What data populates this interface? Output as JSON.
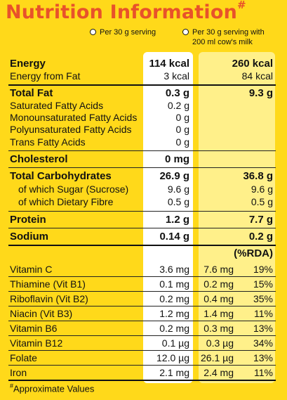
{
  "title": "Nutrition Information",
  "title_mark": "#",
  "columns": {
    "col1_label": "Per 30 g serving",
    "col2_label_line1": "Per 30 g serving with",
    "col2_label_line2": "200 ml cow's milk"
  },
  "energy": {
    "label": "Energy",
    "v1": "114 kcal",
    "v2": "260 kcal"
  },
  "energy_fat": {
    "label": "Energy from Fat",
    "v1": "3 kcal",
    "v2": "84 kcal"
  },
  "total_fat": {
    "label": "Total Fat",
    "v1": "0.3 g",
    "v2": "9.3 g"
  },
  "sat_fat": {
    "label": "Saturated Fatty Acids",
    "v1": "0.2 g"
  },
  "mono_fat": {
    "label": "Monounsaturated Fatty Acids",
    "v1": "0 g"
  },
  "poly_fat": {
    "label": "Polyunsaturated Fatty Acids",
    "v1": "0 g"
  },
  "trans_fat": {
    "label": "Trans Fatty Acids",
    "v1": "0 g"
  },
  "cholesterol": {
    "label": "Cholesterol",
    "v1": "0 mg"
  },
  "carbs": {
    "label": "Total Carbohydrates",
    "v1": "26.9 g",
    "v2": "36.8 g"
  },
  "sugar": {
    "label": "of which Sugar (Sucrose)",
    "v1": "9.6 g",
    "v2": "9.6 g"
  },
  "fibre": {
    "label": "of which Dietary Fibre",
    "v1": "0.5 g",
    "v2": "0.5 g"
  },
  "protein": {
    "label": "Protein",
    "v1": "1.2 g",
    "v2": "7.7 g"
  },
  "sodium": {
    "label": "Sodium",
    "v1": "0.14 g",
    "v2": "0.2 g"
  },
  "rda_header": "(%RDA)",
  "vitamins": [
    {
      "label": "Vitamin C",
      "v1": "3.6 mg",
      "v2": "7.6 mg",
      "rda": "19%"
    },
    {
      "label": "Thiamine (Vit B1)",
      "v1": "0.1 mg",
      "v2": "0.2 mg",
      "rda": "15%"
    },
    {
      "label": "Riboflavin (Vit B2)",
      "v1": "0.2 mg",
      "v2": "0.4 mg",
      "rda": "35%"
    },
    {
      "label": "Niacin (Vit B3)",
      "v1": "1.2 mg",
      "v2": "1.4 mg",
      "rda": "11%"
    },
    {
      "label": "Vitamin B6",
      "v1": "0.2 mg",
      "v2": "0.3 mg",
      "rda": "13%"
    },
    {
      "label": "Vitamin B12",
      "v1": "0.1 µg",
      "v2": "0.3 µg",
      "rda": "34%"
    },
    {
      "label": "Folate",
      "v1": "12.0 µg",
      "v2": "26.1 µg",
      "rda": "13%"
    },
    {
      "label": "Iron",
      "v1": "2.1 mg",
      "v2": "2.4 mg",
      "rda": "11%"
    }
  ],
  "footnote_mark": "#",
  "footnote": "Approximate Values",
  "colors": {
    "background": "#ffd91a",
    "title": "#e8522a",
    "column1": "#ffffff",
    "column2": "#fff08a"
  }
}
